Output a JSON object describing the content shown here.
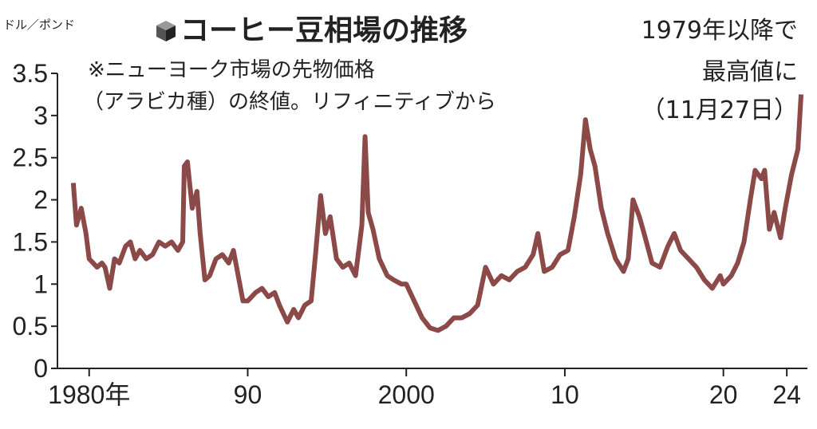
{
  "chart_data": {
    "type": "line",
    "title": "コーヒー豆相場の推移",
    "y_label": "ドル／ポンド",
    "note": [
      "※ニューヨーク市場の先物価格",
      "（アラビカ種）の終値。リフィニティブから"
    ],
    "annotation": [
      "1979年以降で",
      "最高値に",
      "（11月27日）"
    ],
    "xlim": [
      1978,
      2025.3
    ],
    "ylim": [
      0,
      3.5
    ],
    "xticks": [
      {
        "value": 1980,
        "label": "1980年"
      },
      {
        "value": 1990,
        "label": "90"
      },
      2000,
      {
        "value": 2010,
        "label": "10"
      },
      {
        "value": 2020,
        "label": "20"
      },
      {
        "value": 2024,
        "label": "24"
      }
    ],
    "yticks": [
      0,
      0.5,
      1,
      1.5,
      2,
      2.5,
      3,
      3.5
    ],
    "grid": false,
    "series": [
      {
        "color": "#8b4a47",
        "x": [
          1979.0,
          1979.2,
          1979.5,
          1979.8,
          1980.0,
          1980.5,
          1980.8,
          1981.0,
          1981.3,
          1981.6,
          1981.9,
          1982.3,
          1982.6,
          1982.9,
          1983.2,
          1983.6,
          1984.0,
          1984.4,
          1984.8,
          1985.2,
          1985.6,
          1985.9,
          1986.0,
          1986.2,
          1986.5,
          1986.8,
          1987.0,
          1987.3,
          1987.6,
          1988.0,
          1988.4,
          1988.8,
          1989.1,
          1989.4,
          1989.7,
          1990.0,
          1990.5,
          1990.9,
          1991.3,
          1991.7,
          1992.0,
          1992.5,
          1992.9,
          1993.2,
          1993.6,
          1994.0,
          1994.3,
          1994.6,
          1994.9,
          1995.2,
          1995.6,
          1996.0,
          1996.4,
          1996.8,
          1997.2,
          1997.4,
          1997.6,
          1997.9,
          1998.3,
          1998.8,
          1999.2,
          1999.7,
          2000.0,
          2000.5,
          2001.0,
          2001.5,
          2002.0,
          2002.5,
          2003.0,
          2003.5,
          2004.0,
          2004.5,
          2005.0,
          2005.5,
          2006.0,
          2006.5,
          2007.0,
          2007.5,
          2008.0,
          2008.3,
          2008.7,
          2009.2,
          2009.7,
          2010.2,
          2010.6,
          2011.0,
          2011.3,
          2011.6,
          2011.9,
          2012.3,
          2012.7,
          2013.2,
          2013.7,
          2014.0,
          2014.3,
          2014.7,
          2015.0,
          2015.5,
          2016.0,
          2016.5,
          2016.9,
          2017.3,
          2017.8,
          2018.3,
          2018.8,
          2019.3,
          2019.8,
          2020.0,
          2020.5,
          2020.9,
          2021.3,
          2021.7,
          2022.0,
          2022.4,
          2022.6,
          2022.9,
          2023.2,
          2023.6,
          2023.9,
          2024.3,
          2024.7,
          2024.9
        ],
        "values": [
          2.2,
          1.7,
          1.9,
          1.6,
          1.3,
          1.2,
          1.25,
          1.2,
          0.95,
          1.3,
          1.25,
          1.45,
          1.5,
          1.3,
          1.4,
          1.3,
          1.35,
          1.5,
          1.45,
          1.5,
          1.4,
          1.5,
          2.4,
          2.45,
          1.9,
          2.1,
          1.6,
          1.05,
          1.1,
          1.3,
          1.35,
          1.25,
          1.4,
          1.1,
          0.8,
          0.8,
          0.9,
          0.95,
          0.85,
          0.9,
          0.75,
          0.55,
          0.7,
          0.6,
          0.75,
          0.8,
          1.4,
          2.05,
          1.6,
          1.8,
          1.3,
          1.2,
          1.25,
          1.1,
          1.7,
          2.75,
          1.85,
          1.65,
          1.3,
          1.1,
          1.05,
          1.0,
          1.0,
          0.8,
          0.6,
          0.48,
          0.45,
          0.5,
          0.6,
          0.6,
          0.65,
          0.75,
          1.2,
          1.0,
          1.1,
          1.05,
          1.15,
          1.2,
          1.35,
          1.6,
          1.15,
          1.2,
          1.35,
          1.4,
          1.8,
          2.3,
          2.95,
          2.6,
          2.4,
          1.9,
          1.6,
          1.3,
          1.15,
          1.3,
          2.0,
          1.8,
          1.6,
          1.25,
          1.2,
          1.45,
          1.6,
          1.4,
          1.3,
          1.2,
          1.05,
          0.95,
          1.1,
          1.0,
          1.1,
          1.25,
          1.5,
          2.0,
          2.35,
          2.25,
          2.35,
          1.65,
          1.85,
          1.55,
          1.9,
          2.3,
          2.6,
          3.25
        ]
      }
    ]
  }
}
